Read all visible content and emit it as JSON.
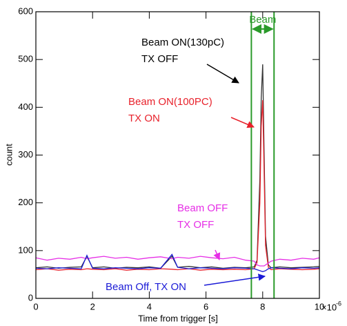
{
  "chart_data": {
    "type": "line",
    "x_label": "Time from trigger [s]",
    "y_label": "count",
    "x_multiplier": "×10",
    "x_exponent": "-6",
    "x": [
      0,
      0.4,
      0.8,
      1.2,
      1.6,
      1.8,
      2.0,
      2.4,
      2.8,
      3.2,
      3.6,
      4.0,
      4.4,
      4.8,
      5.0,
      5.4,
      5.8,
      6.2,
      6.6,
      7.0,
      7.4,
      7.7,
      7.8,
      7.9,
      7.95,
      8.0,
      8.05,
      8.1,
      8.2,
      8.3,
      8.6,
      9.0,
      9.4,
      9.8,
      10
    ],
    "series": [
      {
        "name": "Beam ON(130pC)\nTX OFF",
        "color": "#333333",
        "values": [
          64,
          66,
          63,
          65,
          66,
          88,
          64,
          66,
          63,
          65,
          64,
          66,
          63,
          88,
          65,
          67,
          64,
          66,
          63,
          65,
          64,
          66,
          80,
          250,
          420,
          490,
          300,
          130,
          70,
          64,
          66,
          64,
          65,
          66,
          67
        ]
      },
      {
        "name": "Beam ON(100PC)\nTX ON",
        "color": "#e8212b",
        "values": [
          60,
          62,
          59,
          61,
          60,
          62,
          61,
          60,
          62,
          59,
          61,
          60,
          62,
          61,
          60,
          62,
          59,
          61,
          60,
          61,
          60,
          62,
          75,
          200,
          360,
          415,
          260,
          110,
          65,
          60,
          62,
          61,
          60,
          61,
          62
        ]
      },
      {
        "name": "Beam OFF\nTX OFF",
        "color": "#e62ee6",
        "values": [
          85,
          80,
          84,
          82,
          86,
          83,
          85,
          88,
          84,
          86,
          82,
          85,
          87,
          83,
          86,
          84,
          88,
          85,
          83,
          86,
          80,
          78,
          70,
          68,
          68,
          68,
          68,
          70,
          74,
          78,
          82,
          80,
          84,
          82,
          85
        ]
      },
      {
        "name": "Beam Off, TX ON",
        "color": "#1a1ad6",
        "values": [
          63,
          62,
          64,
          63,
          62,
          90,
          63,
          62,
          64,
          63,
          62,
          64,
          63,
          92,
          65,
          62,
          64,
          63,
          62,
          64,
          63,
          62,
          60,
          58,
          57,
          56,
          57,
          58,
          62,
          64,
          63,
          62,
          64,
          63,
          64
        ]
      }
    ],
    "vlines": [
      7.6,
      8.4
    ],
    "vline_label": "Beam",
    "vline_color": "#2a9a2a",
    "xlim": [
      0,
      10
    ],
    "xticks": [
      0,
      2,
      4,
      6,
      8,
      10
    ],
    "ylim": [
      0,
      600
    ],
    "yticks": [
      0,
      100,
      200,
      300,
      400,
      500,
      600
    ]
  }
}
